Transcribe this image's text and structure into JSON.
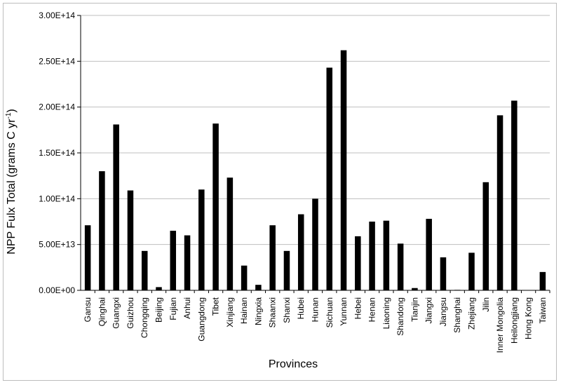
{
  "chart_data": {
    "type": "bar",
    "xlabel": "Provinces",
    "ylabel": "NPP Fulx Total (grams C yr",
    "ylabel_superscript": "-1",
    "ylabel_close": ")",
    "ylim": [
      0,
      300000000000000.0
    ],
    "yticks": [
      0,
      50000000000000.0,
      100000000000000.0,
      150000000000000.0,
      200000000000000.0,
      250000000000000.0,
      300000000000000.0
    ],
    "ytick_labels": [
      "0.00E+00",
      "5.00E+13",
      "1.00E+14",
      "1.50E+14",
      "2.00E+14",
      "2.50E+14",
      "3.00E+14"
    ],
    "grid": true,
    "legend": "none",
    "bar_color": "#000000",
    "grid_color": "#bfbfbf",
    "categories": [
      "Gansu",
      "Qinghai",
      "Guangxi",
      "Guizhou",
      "Chongqing",
      "Beijing",
      "Fujian",
      "Anhui",
      "Guangdong",
      "Tibet",
      "Xinjiang",
      "Hainan",
      "Ningxia",
      "Shaanxi",
      "Shanxi",
      "Hubei",
      "Hunan",
      "Sichuan",
      "Yunnan",
      "Hebei",
      "Henan",
      "Liaoning",
      "Shandong",
      "Tianjin",
      "Jiangxi",
      "Jiangsu",
      "Shanghai",
      "Zhejiang",
      "Jilin",
      "Inner Mongolia",
      "Heilongjiang",
      "Hong Kong",
      "Taiwan"
    ],
    "values": [
      71000000000000.0,
      130000000000000.0,
      181000000000000.0,
      109000000000000.0,
      43000000000000.0,
      3500000000000.0,
      65000000000000.0,
      60000000000000.0,
      110000000000000.0,
      182000000000000.0,
      123000000000000.0,
      27000000000000.0,
      6000000000000.0,
      71000000000000.0,
      43000000000000.0,
      83000000000000.0,
      100000000000000.0,
      243000000000000.0,
      262000000000000.0,
      59000000000000.0,
      75000000000000.0,
      76000000000000.0,
      51000000000000.0,
      2500000000000.0,
      78000000000000.0,
      36000000000000.0,
      500000000000.0,
      41000000000000.0,
      118000000000000.0,
      191000000000000.0,
      207000000000000.0,
      300000000000.0,
      20000000000000.0
    ]
  }
}
